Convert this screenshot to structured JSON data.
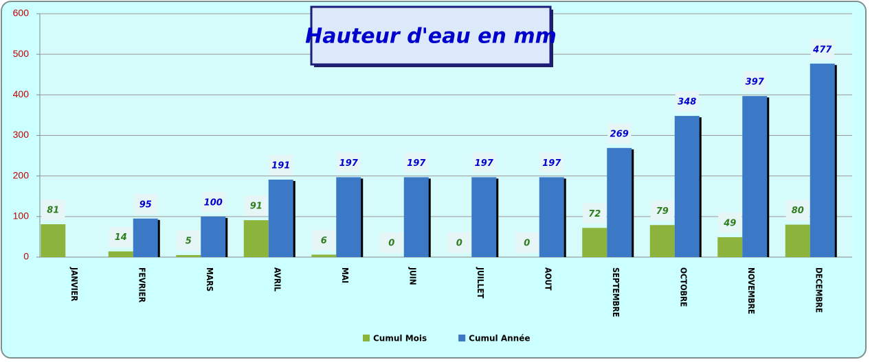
{
  "chart_data": {
    "type": "bar",
    "title": "Hauteur d'eau en mm",
    "categories": [
      "JANVIER",
      "FEVRIER",
      "MARS",
      "AVRIL",
      "MAI",
      "JUIN",
      "JUILLET",
      "AOUT",
      "SEPTEMBRE",
      "OCTOBRE",
      "NOVEMBRE",
      "DECEMBRE"
    ],
    "series": [
      {
        "name": "Cumul Mois",
        "color": "#8cb43c",
        "values": [
          81,
          14,
          5,
          91,
          6,
          0,
          0,
          0,
          72,
          79,
          49,
          80
        ]
      },
      {
        "name": "Cumul Année",
        "color": "#3b78c6",
        "values": [
          null,
          95,
          100,
          191,
          197,
          197,
          197,
          197,
          269,
          348,
          397,
          477
        ]
      }
    ],
    "ylim": [
      0,
      600
    ],
    "yticks": [
      0,
      100,
      200,
      300,
      400,
      500,
      600
    ],
    "grid": true,
    "legend": "bottom"
  }
}
